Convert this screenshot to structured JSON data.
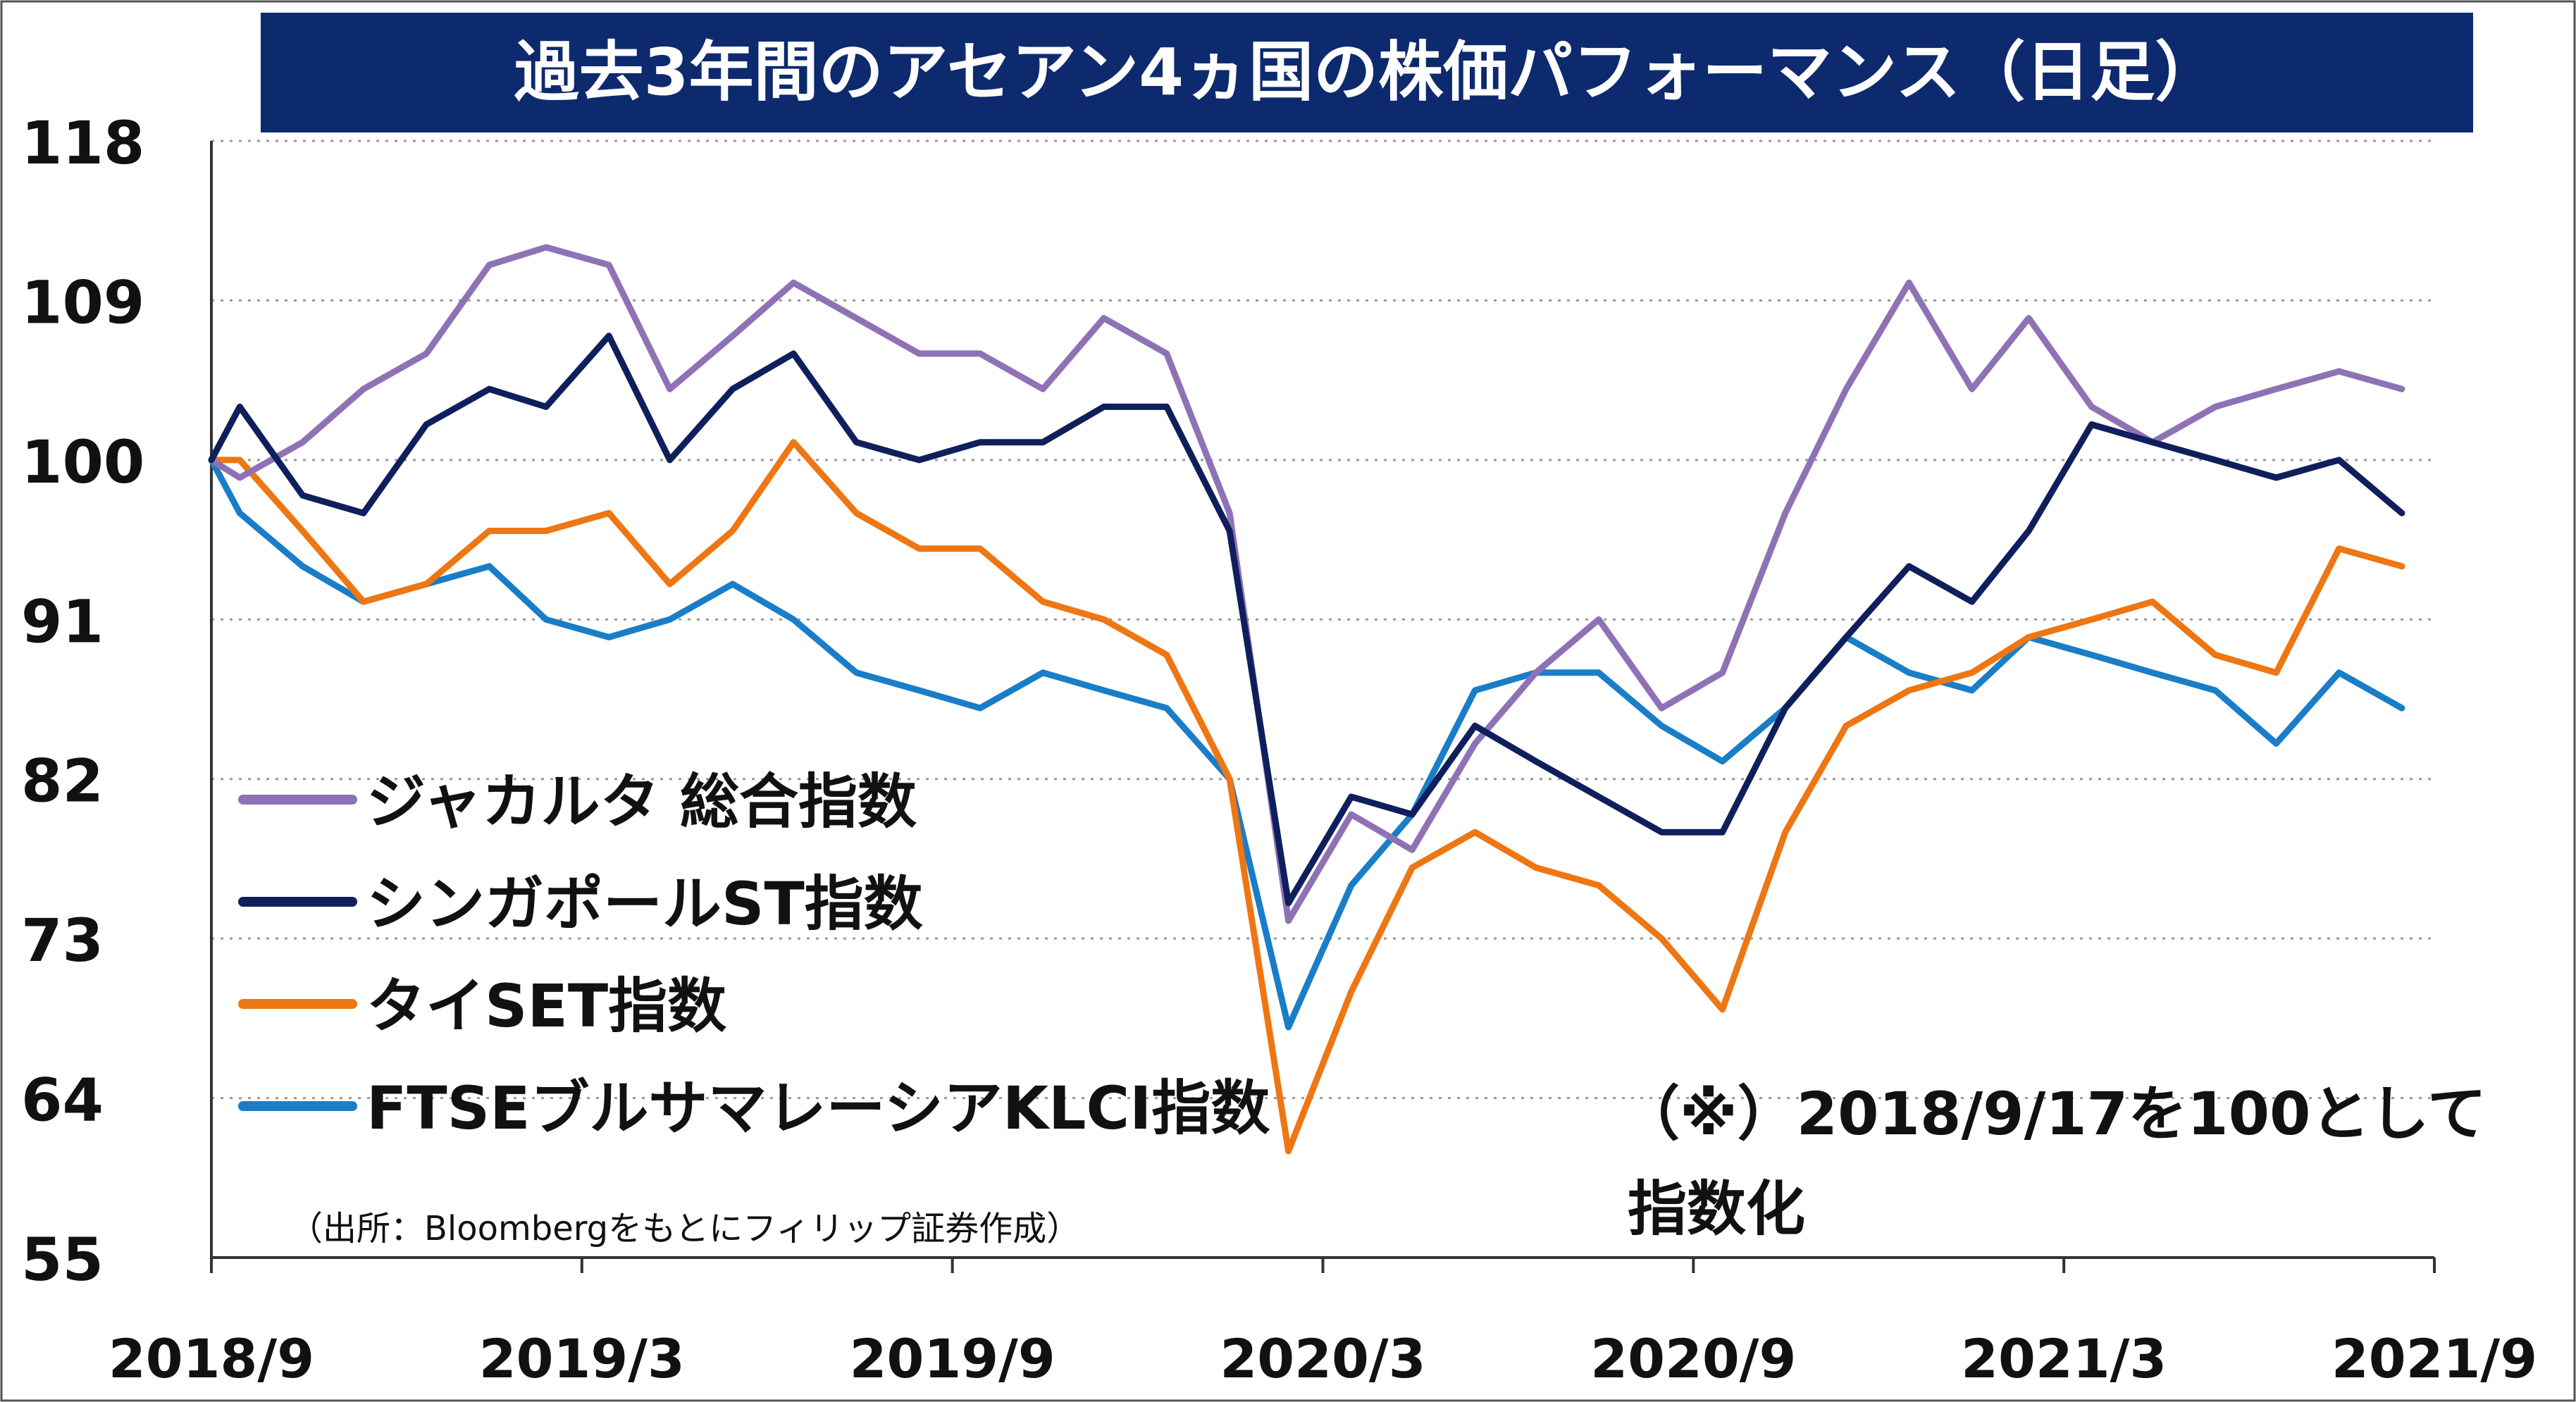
{
  "chart_data": {
    "type": "line",
    "title": "過去3年間のアセアン4ヵ国の株価パフォーマンス（日足）",
    "x_ticks": [
      "2018/9",
      "2019/3",
      "2019/9",
      "2020/3",
      "2020/9",
      "2021/3",
      "2021/9"
    ],
    "y_ticks": [
      "118",
      "109",
      "100",
      "91",
      "82",
      "73",
      "64",
      "55"
    ],
    "ylim": [
      55,
      118
    ],
    "grid": "horizontal dotted",
    "legend_position": "left",
    "source": "（出所：Bloombergをもとにフィリップ証券作成）",
    "note_line1": "（※）2018/9/17を100として",
    "note_line2": "指数化",
    "series": [
      {
        "name": "ジャカルタ 総合指数",
        "color": "#8f72b5",
        "x": [
          "2018/9/17",
          "2018/10",
          "2018/11",
          "2018/12",
          "2019/1",
          "2019/2",
          "2019/3",
          "2019/4",
          "2019/5",
          "2019/6",
          "2019/7",
          "2019/8",
          "2019/9",
          "2019/10",
          "2019/11",
          "2019/12",
          "2020/1",
          "2020/2",
          "2020/3",
          "2020/4",
          "2020/5",
          "2020/6",
          "2020/7",
          "2020/8",
          "2020/9",
          "2020/10",
          "2020/11",
          "2020/12",
          "2021/1",
          "2021/2",
          "2021/3",
          "2021/4",
          "2021/5",
          "2021/6",
          "2021/7",
          "2021/8",
          "2021/9"
        ],
        "y": [
          100,
          99,
          101,
          104,
          106,
          111,
          112,
          111,
          104,
          107,
          110,
          108,
          106,
          106,
          104,
          108,
          106,
          97,
          74,
          80,
          78,
          84,
          88,
          91,
          86,
          88,
          97,
          104,
          110,
          104,
          108,
          103,
          101,
          103,
          104,
          105,
          104
        ]
      },
      {
        "name": "シンガポールST指数",
        "color": "#0f1f5c",
        "x": [
          "2018/9/17",
          "2018/10",
          "2018/11",
          "2018/12",
          "2019/1",
          "2019/2",
          "2019/3",
          "2019/4",
          "2019/5",
          "2019/6",
          "2019/7",
          "2019/8",
          "2019/9",
          "2019/10",
          "2019/11",
          "2019/12",
          "2020/1",
          "2020/2",
          "2020/3",
          "2020/4",
          "2020/5",
          "2020/6",
          "2020/7",
          "2020/8",
          "2020/9",
          "2020/10",
          "2020/11",
          "2020/12",
          "2021/1",
          "2021/2",
          "2021/3",
          "2021/4",
          "2021/5",
          "2021/6",
          "2021/7",
          "2021/8",
          "2021/9"
        ],
        "y": [
          100,
          103,
          98,
          97,
          102,
          104,
          103,
          107,
          100,
          104,
          106,
          101,
          100,
          101,
          101,
          103,
          103,
          96,
          75,
          81,
          80,
          85,
          83,
          81,
          79,
          79,
          86,
          90,
          94,
          92,
          96,
          102,
          101,
          100,
          99,
          100,
          97
        ]
      },
      {
        "name": "タイSET指数",
        "color": "#ee7613",
        "x": [
          "2018/9/17",
          "2018/10",
          "2018/11",
          "2018/12",
          "2019/1",
          "2019/2",
          "2019/3",
          "2019/4",
          "2019/5",
          "2019/6",
          "2019/7",
          "2019/8",
          "2019/9",
          "2019/10",
          "2019/11",
          "2019/12",
          "2020/1",
          "2020/2",
          "2020/3",
          "2020/4",
          "2020/5",
          "2020/6",
          "2020/7",
          "2020/8",
          "2020/9",
          "2020/10",
          "2020/11",
          "2020/12",
          "2021/1",
          "2021/2",
          "2021/3",
          "2021/4",
          "2021/5",
          "2021/6",
          "2021/7",
          "2021/8",
          "2021/9"
        ],
        "y": [
          100,
          100,
          96,
          92,
          93,
          96,
          96,
          97,
          93,
          96,
          101,
          97,
          95,
          95,
          92,
          91,
          89,
          82,
          61,
          70,
          77,
          79,
          77,
          76,
          73,
          69,
          79,
          85,
          87,
          88,
          90,
          91,
          92,
          89,
          88,
          95,
          94
        ]
      },
      {
        "name": "FTSEブルサマレーシアKLCI指数",
        "color": "#1a7dc8",
        "x": [
          "2018/9/17",
          "2018/10",
          "2018/11",
          "2018/12",
          "2019/1",
          "2019/2",
          "2019/3",
          "2019/4",
          "2019/5",
          "2019/6",
          "2019/7",
          "2019/8",
          "2019/9",
          "2019/10",
          "2019/11",
          "2019/12",
          "2020/1",
          "2020/2",
          "2020/3",
          "2020/4",
          "2020/5",
          "2020/6",
          "2020/7",
          "2020/8",
          "2020/9",
          "2020/10",
          "2020/11",
          "2020/12",
          "2021/1",
          "2021/2",
          "2021/3",
          "2021/4",
          "2021/5",
          "2021/6",
          "2021/7",
          "2021/8",
          "2021/9"
        ],
        "y": [
          100,
          97,
          94,
          92,
          93,
          94,
          91,
          90,
          91,
          93,
          91,
          88,
          87,
          86,
          88,
          87,
          86,
          82,
          68,
          76,
          80,
          87,
          88,
          88,
          85,
          83,
          86,
          90,
          88,
          87,
          90,
          89,
          88,
          87,
          84,
          88,
          86
        ]
      }
    ]
  }
}
